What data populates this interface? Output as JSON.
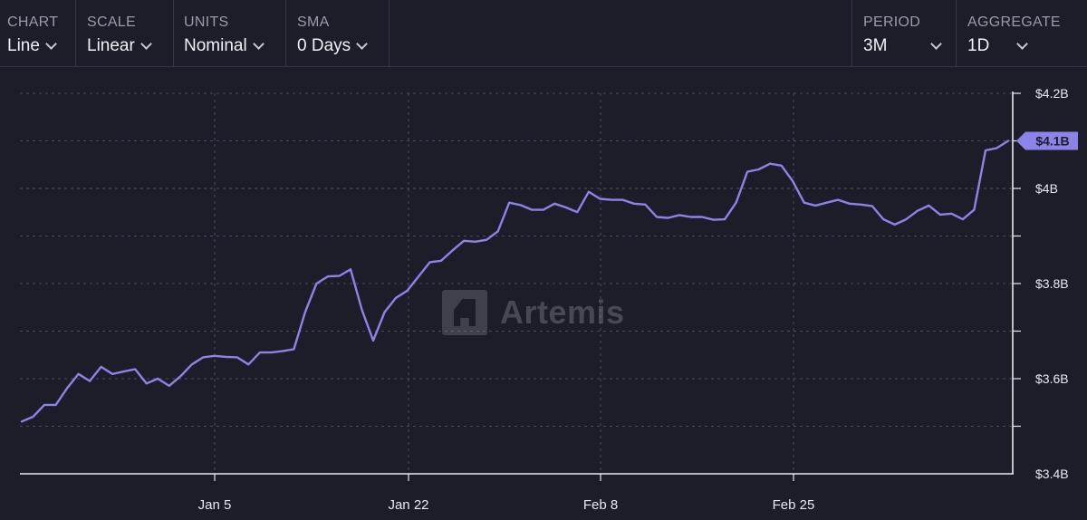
{
  "toolbar": {
    "chart": {
      "label": "CHART",
      "value": "Line"
    },
    "scale": {
      "label": "SCALE",
      "value": "Linear"
    },
    "units": {
      "label": "UNITS",
      "value": "Nominal"
    },
    "sma": {
      "label": "SMA",
      "value": "0 Days"
    },
    "period": {
      "label": "PERIOD",
      "value": "3M"
    },
    "aggregate": {
      "label": "AGGREGATE",
      "value": "1D"
    }
  },
  "watermark": "Artemis",
  "colors": {
    "background": "#1d1d29",
    "line": "#8b83e8",
    "grid": "#4a4a5c",
    "axis": "#e8e8ee"
  },
  "chart_data": {
    "type": "line",
    "scale": "linear",
    "grid": true,
    "x_ticks": [
      "Jan 5",
      "Jan 22",
      "Feb 8",
      "Feb 25"
    ],
    "y_ticks": [
      "$3.4B",
      "$3.6B",
      "$3.8B",
      "$4B",
      "$4.2B"
    ],
    "ylim": [
      3.4,
      4.2
    ],
    "last_value_label": "$4.1B",
    "series": [
      {
        "values": [
          3.51,
          3.52,
          3.545,
          3.545,
          3.58,
          3.61,
          3.595,
          3.625,
          3.61,
          3.615,
          3.62,
          3.59,
          3.6,
          3.585,
          3.605,
          3.63,
          3.645,
          3.648,
          3.646,
          3.645,
          3.63,
          3.655,
          3.655,
          3.658,
          3.662,
          3.74,
          3.8,
          3.815,
          3.816,
          3.83,
          3.745,
          3.68,
          3.74,
          3.77,
          3.785,
          3.815,
          3.845,
          3.848,
          3.87,
          3.89,
          3.888,
          3.892,
          3.91,
          3.97,
          3.965,
          3.955,
          3.955,
          3.968,
          3.96,
          3.95,
          3.993,
          3.978,
          3.976,
          3.976,
          3.968,
          3.966,
          3.94,
          3.938,
          3.944,
          3.94,
          3.94,
          3.934,
          3.935,
          3.97,
          4.035,
          4.04,
          4.052,
          4.048,
          4.015,
          3.97,
          3.964,
          3.97,
          3.976,
          3.968,
          3.966,
          3.963,
          3.935,
          3.924,
          3.935,
          3.953,
          3.964,
          3.945,
          3.947,
          3.935,
          3.955,
          4.08,
          4.085,
          4.1
        ]
      }
    ]
  }
}
